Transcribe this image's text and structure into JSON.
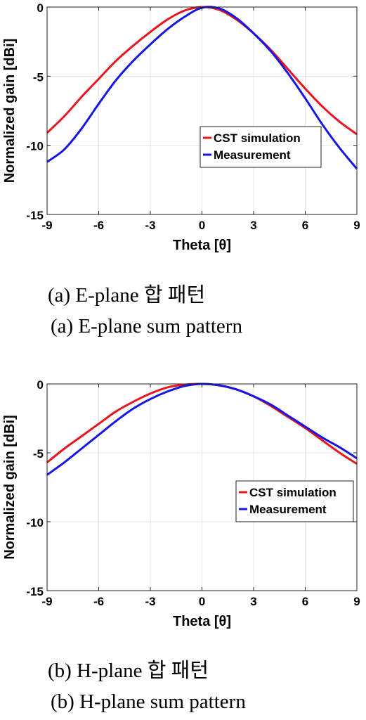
{
  "chart_data": [
    {
      "type": "line",
      "xlabel": "Theta [θ]",
      "ylabel": "Normalized gain [dBi]",
      "xlim": [
        -9,
        9
      ],
      "ylim": [
        -15,
        0
      ],
      "xticks": [
        "-9",
        "-6",
        "-3",
        "0",
        "3",
        "6",
        "9"
      ],
      "yticks": [
        "0",
        "-5",
        "-10",
        "-15"
      ],
      "grid": true,
      "legend_position": "right",
      "series": [
        {
          "name": "CST simulation",
          "color": "#e8161e",
          "x": [
            -9,
            -8,
            -7,
            -6,
            -5,
            -4,
            -3,
            -2,
            -1,
            0,
            1,
            2,
            3,
            4,
            5,
            6,
            7,
            8,
            9
          ],
          "y": [
            -9.1,
            -7.9,
            -6.5,
            -5.2,
            -3.9,
            -2.8,
            -1.8,
            -0.9,
            -0.25,
            0,
            -0.2,
            -0.9,
            -1.9,
            -3.1,
            -4.5,
            -5.9,
            -7.2,
            -8.3,
            -9.2
          ]
        },
        {
          "name": "Measurement",
          "color": "#1515e8",
          "x": [
            -9,
            -8,
            -7,
            -6,
            -5,
            -4,
            -3,
            -2,
            -1,
            0,
            1,
            2,
            3,
            4,
            5,
            6,
            7,
            8,
            9
          ],
          "y": [
            -11.2,
            -10.3,
            -8.8,
            -7.0,
            -5.3,
            -3.9,
            -2.7,
            -1.6,
            -0.7,
            -0.05,
            -0.1,
            -0.8,
            -1.9,
            -3.2,
            -4.8,
            -6.6,
            -8.5,
            -10.2,
            -11.7
          ]
        }
      ],
      "caption_ko": "(a) E-plane 합 패턴",
      "caption_en": "(a) E-plane sum pattern"
    },
    {
      "type": "line",
      "xlabel": "Theta [θ]",
      "ylabel": "Normalized gain [dBi]",
      "xlim": [
        -9,
        9
      ],
      "ylim": [
        -15,
        0
      ],
      "xticks": [
        "-9",
        "-6",
        "-3",
        "0",
        "3",
        "6",
        "9"
      ],
      "yticks": [
        "0",
        "-5",
        "-10",
        "-15"
      ],
      "grid": true,
      "legend_position": "right",
      "series": [
        {
          "name": "CST simulation",
          "color": "#e8161e",
          "x": [
            -9,
            -8,
            -7,
            -6,
            -5,
            -4,
            -3,
            -2,
            -1,
            0,
            1,
            2,
            3,
            4,
            5,
            6,
            7,
            8,
            9
          ],
          "y": [
            -5.7,
            -4.7,
            -3.8,
            -2.9,
            -2.0,
            -1.3,
            -0.7,
            -0.25,
            -0.05,
            0,
            -0.1,
            -0.4,
            -0.9,
            -1.6,
            -2.4,
            -3.2,
            -4.1,
            -5.0,
            -5.8
          ]
        },
        {
          "name": "Measurement",
          "color": "#1515e8",
          "x": [
            -9,
            -8,
            -7,
            -6,
            -5,
            -4,
            -3,
            -2,
            -1,
            0,
            1,
            2,
            3,
            4,
            5,
            6,
            7,
            8,
            9
          ],
          "y": [
            -6.6,
            -5.7,
            -4.7,
            -3.7,
            -2.7,
            -1.8,
            -1.1,
            -0.55,
            -0.15,
            0,
            -0.1,
            -0.4,
            -0.9,
            -1.5,
            -2.3,
            -3.1,
            -3.9,
            -4.6,
            -5.4
          ]
        }
      ],
      "caption_ko": "(b) H-plane 합 패턴",
      "caption_en": "(b) H-plane sum pattern"
    }
  ]
}
